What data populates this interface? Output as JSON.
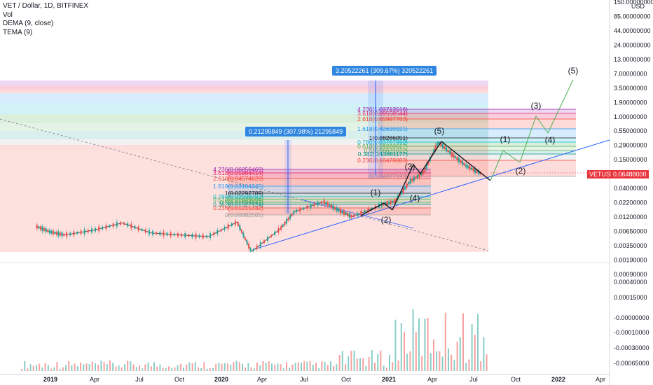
{
  "legend": {
    "symbol": "VET / Dollar, 1D, BITFINEX",
    "vol": "Vol",
    "dema": "DEMA (9, close)",
    "tema": "TEMA (9)"
  },
  "price_tag": "VETUSD",
  "price_tag_value": "0.06488000",
  "callout_large": "3.20522261 (309.67%) 320522261",
  "callout_small": "0.21295849 (307.98%) 21295849",
  "colors": {
    "candle_up": "#26a69a",
    "candle_down": "#ef5350",
    "trend_line": "#2962ff",
    "fib_red": "#f44336",
    "fib_green": "#4caf50",
    "fib_blue": "#2196f3",
    "fib_purple": "#9c27b0",
    "price_tag": "#e8353d"
  },
  "chart_data": {
    "type": "candlestick",
    "title": "VET / Dollar, 1D, BITFINEX",
    "y_scale": "log",
    "y_unit": "USD",
    "x_ticks": [
      "2019",
      "Apr",
      "Jul",
      "Oct",
      "2020",
      "Apr",
      "Jul",
      "Oct",
      "2021",
      "Apr",
      "Jul",
      "Oct",
      "2022",
      "Apr"
    ],
    "y_ticks": [
      "150.00000000",
      "85.00000000",
      "44.00000000",
      "24.00000000",
      "13.00000000",
      "7.00000000",
      "3.50000000",
      "1.90000000",
      "1.00000000",
      "0.55000000",
      "0.29000000",
      "0.15000000",
      "0.08000000",
      "0.04000000",
      "0.02200000",
      "0.01200000",
      "0.00650000",
      "0.00350000",
      "0.00190000",
      "0.00090000"
    ],
    "volume_ticks": [
      "0.00040000",
      "0.00015000",
      "-0.00000000",
      "-0.00010000",
      "-0.00030000",
      "-0.00065000"
    ],
    "price_series_approx": [
      {
        "date": "2018-12",
        "price": 0.0062
      },
      {
        "date": "2019-01",
        "price": 0.0048
      },
      {
        "date": "2019-02",
        "price": 0.0042
      },
      {
        "date": "2019-04",
        "price": 0.0052
      },
      {
        "date": "2019-06",
        "price": 0.0072
      },
      {
        "date": "2019-08",
        "price": 0.0046
      },
      {
        "date": "2019-10",
        "price": 0.0042
      },
      {
        "date": "2019-12",
        "price": 0.0039
      },
      {
        "date": "2020-02",
        "price": 0.0075
      },
      {
        "date": "2020-03",
        "price": 0.002
      },
      {
        "date": "2020-05",
        "price": 0.0055
      },
      {
        "date": "2020-06",
        "price": 0.012
      },
      {
        "date": "2020-08",
        "price": 0.0185
      },
      {
        "date": "2020-09",
        "price": 0.013
      },
      {
        "date": "2020-10",
        "price": 0.0095
      },
      {
        "date": "2020-12",
        "price": 0.016
      },
      {
        "date": "2021-01",
        "price": 0.019
      },
      {
        "date": "2021-02",
        "price": 0.045
      },
      {
        "date": "2021-03",
        "price": 0.07
      },
      {
        "date": "2021-04",
        "price": 0.27
      },
      {
        "date": "2021-05",
        "price": 0.15
      },
      {
        "date": "2021-06",
        "price": 0.09
      },
      {
        "date": "2021-07",
        "price": 0.065
      }
    ],
    "fib_left": {
      "levels": [
        {
          "label": "4.236(0.06856469)",
          "value": 0.06856469
        },
        {
          "label": "3.618(0.05984414)",
          "value": 0.05984414
        },
        {
          "label": "2.618(0.04574629)",
          "value": 0.04574629
        },
        {
          "label": "1.618(0.03164345)",
          "value": 0.03164345
        },
        {
          "label": "1(0.02292789)",
          "value": 0.02292789
        },
        {
          "label": "0.786(0.02038762)",
          "value": 0.02038762
        },
        {
          "label": "0.618(0.01829004)",
          "value": 0.01829004
        },
        {
          "label": "0.5(0.01676841)",
          "value": 0.01676841
        },
        {
          "label": "0.382(0.01527124)",
          "value": 0.01527124
        },
        {
          "label": "0.236(0.01215332)",
          "value": 0.01215332
        },
        {
          "label": "0(0.00882505)",
          "value": 0.00882505
        }
      ]
    },
    "fib_right": {
      "levels": [
        {
          "label": "4.236(1.03713516)",
          "value": 1.03713516
        },
        {
          "label": "3.618(0.89558544)",
          "value": 0.89558544
        },
        {
          "label": "2.618(0.65997783)",
          "value": 0.65997783
        },
        {
          "label": "1.618(0.42690925)",
          "value": 0.42690925
        },
        {
          "label": "1(0.28286051)",
          "value": 0.28286051
        },
        {
          "label": "0.786(0.23767999)",
          "value": 0.23767999
        },
        {
          "label": "0.618(0.19260627)",
          "value": 0.19260627
        },
        {
          "label": "0.5(0.16631622)",
          "value": 0.16631622
        },
        {
          "label": "0.382(0.13881177)",
          "value": 0.13881177
        },
        {
          "label": "0.236(0.10478083)",
          "value": 0.10478083
        },
        {
          "label": "0(0.04977193)",
          "value": 0.04977193
        }
      ]
    },
    "wave_labels": [
      "(1)",
      "(2)",
      "(3)",
      "(4)",
      "(5)",
      "(1)",
      "(2)",
      "(3)",
      "(4)",
      "(5)"
    ]
  }
}
